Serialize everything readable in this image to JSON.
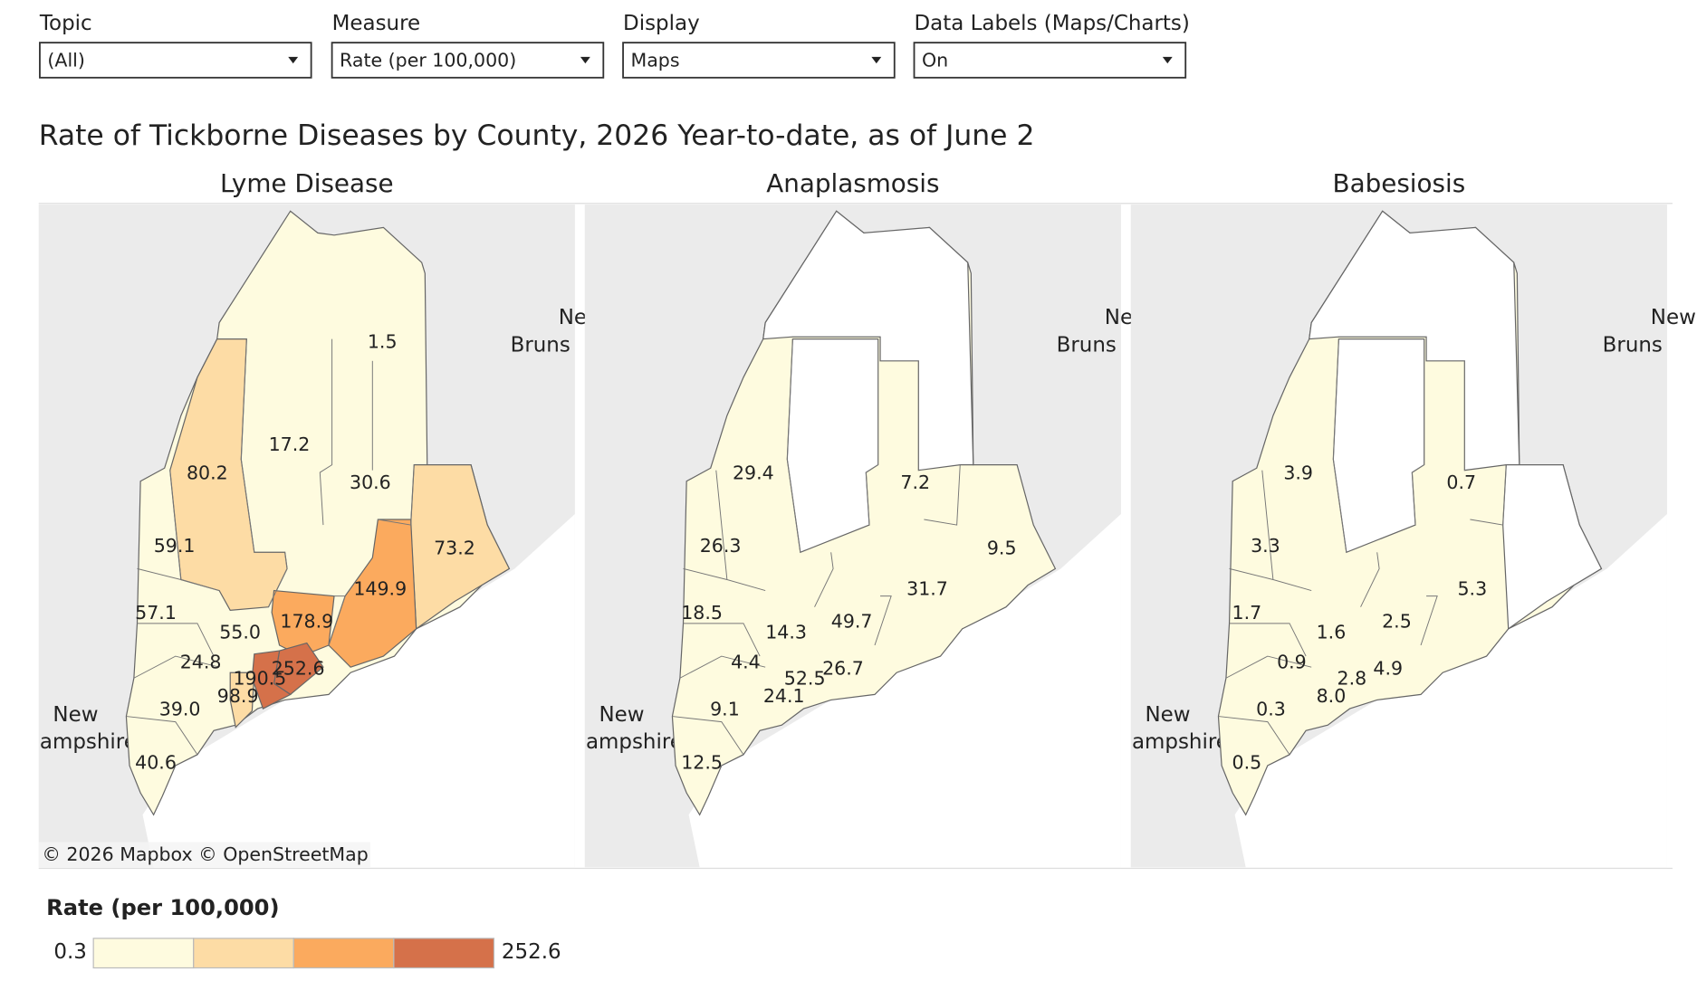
{
  "filters": [
    {
      "label": "Topic",
      "value": "(All)"
    },
    {
      "label": "Measure",
      "value": "Rate (per 100,000)"
    },
    {
      "label": "Display",
      "value": "Maps"
    },
    {
      "label": "Data Labels (Maps/Charts)",
      "value": "On"
    }
  ],
  "title": "Rate of Tickborne Diseases by County, 2026 Year-to-date, as of June 2",
  "maps": [
    {
      "title": "Lyme Disease",
      "labels": [
        "1.5",
        "17.2",
        "80.2",
        "30.6",
        "59.1",
        "73.2",
        "149.9",
        "57.1",
        "178.9",
        "55.0",
        "24.8",
        "252.6",
        "190.5",
        "98.9",
        "39.0",
        "40.6"
      ]
    },
    {
      "title": "Anaplasmosis",
      "labels": [
        "29.4",
        "7.2",
        "26.3",
        "9.5",
        "31.7",
        "18.5",
        "49.7",
        "14.3",
        "4.4",
        "26.7",
        "52.5",
        "24.1",
        "9.1",
        "12.5"
      ]
    },
    {
      "title": "Babesiosis",
      "labels": [
        "3.9",
        "0.7",
        "3.3",
        "5.3",
        "1.7",
        "2.5",
        "1.6",
        "0.9",
        "4.9",
        "2.8",
        "8.0",
        "0.3",
        "0.5"
      ]
    }
  ],
  "basemap_labels": [
    "New",
    "Bruns",
    "New",
    "ampshire"
  ],
  "attribution": "© 2026 Mapbox © OpenStreetMap",
  "legend": {
    "title": "Rate (per 100,000)",
    "min": "0.3",
    "max": "252.6",
    "colors": [
      "#fefbdf",
      "#fddca5",
      "#fbaa5e",
      "#d5714a"
    ]
  }
}
